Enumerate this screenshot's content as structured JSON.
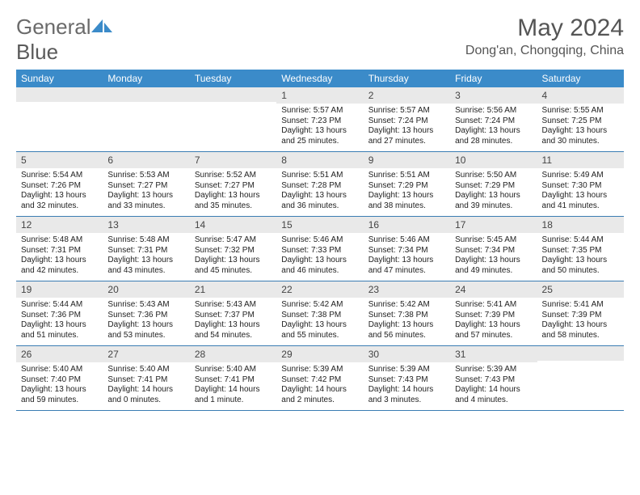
{
  "brand": {
    "text1": "General",
    "text2": "Blue"
  },
  "title": "May 2024",
  "location": "Dong'an, Chongqing, China",
  "colors": {
    "header_bg": "#3b8bc9",
    "header_text": "#ffffff",
    "daynum_bg": "#e9e9e9",
    "row_border": "#3b7db3",
    "logo_color": "#3b8bc9"
  },
  "weekdays": [
    "Sunday",
    "Monday",
    "Tuesday",
    "Wednesday",
    "Thursday",
    "Friday",
    "Saturday"
  ],
  "weeks": [
    [
      {
        "n": "",
        "sr": "",
        "ss": "",
        "dl": ""
      },
      {
        "n": "",
        "sr": "",
        "ss": "",
        "dl": ""
      },
      {
        "n": "",
        "sr": "",
        "ss": "",
        "dl": ""
      },
      {
        "n": "1",
        "sr": "5:57 AM",
        "ss": "7:23 PM",
        "dl": "13 hours and 25 minutes."
      },
      {
        "n": "2",
        "sr": "5:57 AM",
        "ss": "7:24 PM",
        "dl": "13 hours and 27 minutes."
      },
      {
        "n": "3",
        "sr": "5:56 AM",
        "ss": "7:24 PM",
        "dl": "13 hours and 28 minutes."
      },
      {
        "n": "4",
        "sr": "5:55 AM",
        "ss": "7:25 PM",
        "dl": "13 hours and 30 minutes."
      }
    ],
    [
      {
        "n": "5",
        "sr": "5:54 AM",
        "ss": "7:26 PM",
        "dl": "13 hours and 32 minutes."
      },
      {
        "n": "6",
        "sr": "5:53 AM",
        "ss": "7:27 PM",
        "dl": "13 hours and 33 minutes."
      },
      {
        "n": "7",
        "sr": "5:52 AM",
        "ss": "7:27 PM",
        "dl": "13 hours and 35 minutes."
      },
      {
        "n": "8",
        "sr": "5:51 AM",
        "ss": "7:28 PM",
        "dl": "13 hours and 36 minutes."
      },
      {
        "n": "9",
        "sr": "5:51 AM",
        "ss": "7:29 PM",
        "dl": "13 hours and 38 minutes."
      },
      {
        "n": "10",
        "sr": "5:50 AM",
        "ss": "7:29 PM",
        "dl": "13 hours and 39 minutes."
      },
      {
        "n": "11",
        "sr": "5:49 AM",
        "ss": "7:30 PM",
        "dl": "13 hours and 41 minutes."
      }
    ],
    [
      {
        "n": "12",
        "sr": "5:48 AM",
        "ss": "7:31 PM",
        "dl": "13 hours and 42 minutes."
      },
      {
        "n": "13",
        "sr": "5:48 AM",
        "ss": "7:31 PM",
        "dl": "13 hours and 43 minutes."
      },
      {
        "n": "14",
        "sr": "5:47 AM",
        "ss": "7:32 PM",
        "dl": "13 hours and 45 minutes."
      },
      {
        "n": "15",
        "sr": "5:46 AM",
        "ss": "7:33 PM",
        "dl": "13 hours and 46 minutes."
      },
      {
        "n": "16",
        "sr": "5:46 AM",
        "ss": "7:34 PM",
        "dl": "13 hours and 47 minutes."
      },
      {
        "n": "17",
        "sr": "5:45 AM",
        "ss": "7:34 PM",
        "dl": "13 hours and 49 minutes."
      },
      {
        "n": "18",
        "sr": "5:44 AM",
        "ss": "7:35 PM",
        "dl": "13 hours and 50 minutes."
      }
    ],
    [
      {
        "n": "19",
        "sr": "5:44 AM",
        "ss": "7:36 PM",
        "dl": "13 hours and 51 minutes."
      },
      {
        "n": "20",
        "sr": "5:43 AM",
        "ss": "7:36 PM",
        "dl": "13 hours and 53 minutes."
      },
      {
        "n": "21",
        "sr": "5:43 AM",
        "ss": "7:37 PM",
        "dl": "13 hours and 54 minutes."
      },
      {
        "n": "22",
        "sr": "5:42 AM",
        "ss": "7:38 PM",
        "dl": "13 hours and 55 minutes."
      },
      {
        "n": "23",
        "sr": "5:42 AM",
        "ss": "7:38 PM",
        "dl": "13 hours and 56 minutes."
      },
      {
        "n": "24",
        "sr": "5:41 AM",
        "ss": "7:39 PM",
        "dl": "13 hours and 57 minutes."
      },
      {
        "n": "25",
        "sr": "5:41 AM",
        "ss": "7:39 PM",
        "dl": "13 hours and 58 minutes."
      }
    ],
    [
      {
        "n": "26",
        "sr": "5:40 AM",
        "ss": "7:40 PM",
        "dl": "13 hours and 59 minutes."
      },
      {
        "n": "27",
        "sr": "5:40 AM",
        "ss": "7:41 PM",
        "dl": "14 hours and 0 minutes."
      },
      {
        "n": "28",
        "sr": "5:40 AM",
        "ss": "7:41 PM",
        "dl": "14 hours and 1 minute."
      },
      {
        "n": "29",
        "sr": "5:39 AM",
        "ss": "7:42 PM",
        "dl": "14 hours and 2 minutes."
      },
      {
        "n": "30",
        "sr": "5:39 AM",
        "ss": "7:43 PM",
        "dl": "14 hours and 3 minutes."
      },
      {
        "n": "31",
        "sr": "5:39 AM",
        "ss": "7:43 PM",
        "dl": "14 hours and 4 minutes."
      },
      {
        "n": "",
        "sr": "",
        "ss": "",
        "dl": ""
      }
    ]
  ],
  "labels": {
    "sunrise": "Sunrise:",
    "sunset": "Sunset:",
    "daylight": "Daylight:"
  }
}
